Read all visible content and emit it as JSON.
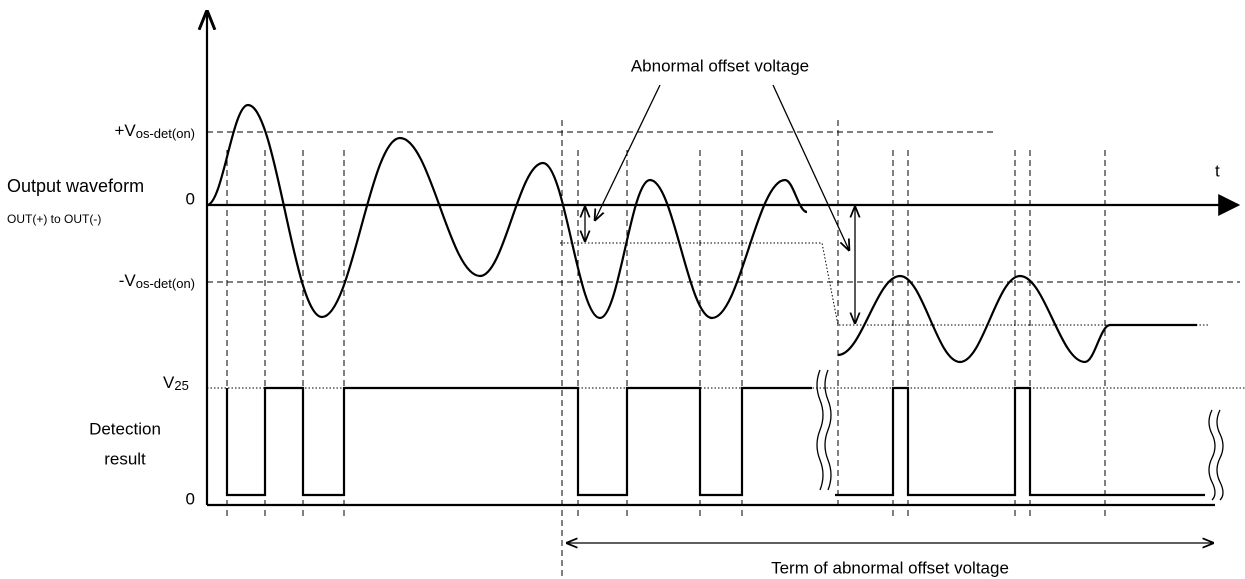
{
  "axis_label": "t",
  "labels": {
    "pos_threshold": {
      "main": "+V",
      "sub": "os-det(on)"
    },
    "zero_output": "0",
    "neg_threshold": {
      "main": "-V",
      "sub": "os-det(on)"
    },
    "v25": {
      "main": "V",
      "sub": "25"
    },
    "zero_detect": "0"
  },
  "signals": {
    "output": {
      "title": "Output waveform",
      "subtitle": "OUT(+) to OUT(-)"
    },
    "detection": {
      "title_lines": [
        "Detection",
        "result"
      ]
    }
  },
  "annotations": {
    "abnormal": "Abnormal offset voltage",
    "term": "Term of abnormal offset voltage"
  }
}
